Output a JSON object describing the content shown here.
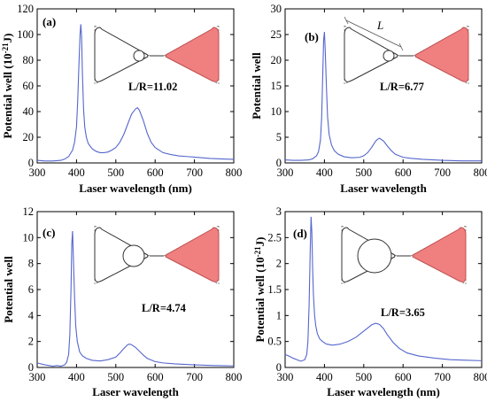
{
  "colors": {
    "curve": "#5566cc",
    "fill": "#f08080",
    "axis": "#000000"
  },
  "chart_data": [
    {
      "type": "line",
      "panel_label": "(a)",
      "ratio_label": "L/R=11.02",
      "xlabel": "Laser wavelength (nm)",
      "ylabel_pre": "Potential well (10",
      "ylabel_sup": "-21",
      "ylabel_post": "J)",
      "xlim": [
        300,
        800
      ],
      "ylim": [
        0,
        120
      ],
      "xticks": [
        300,
        400,
        500,
        600,
        700,
        800
      ],
      "yticks": [
        0,
        20,
        40,
        60,
        80,
        100,
        120
      ],
      "yticklabels": [
        "0",
        "20",
        "40",
        "60",
        "80",
        "100",
        "120"
      ],
      "x": [
        300,
        320,
        340,
        360,
        370,
        380,
        390,
        395,
        400,
        403,
        406,
        409,
        411,
        413,
        415,
        418,
        421,
        425,
        430,
        440,
        450,
        460,
        470,
        480,
        490,
        500,
        510,
        520,
        530,
        540,
        550,
        555,
        560,
        570,
        580,
        590,
        600,
        620,
        640,
        660,
        680,
        700,
        720,
        740,
        760,
        780,
        800
      ],
      "y": [
        2,
        1.5,
        1.5,
        2,
        3,
        5,
        10,
        16,
        28,
        48,
        75,
        100,
        108,
        98,
        70,
        42,
        28,
        20,
        15,
        11,
        9,
        8,
        8,
        8.5,
        10,
        12,
        16,
        22,
        30,
        38,
        42,
        43,
        41,
        33,
        23,
        16,
        12,
        8,
        6.5,
        5.5,
        5,
        4.5,
        4,
        3.5,
        3.2,
        3,
        2.8
      ],
      "show_L": false,
      "inner_circle": "small"
    },
    {
      "type": "line",
      "panel_label": "(b)",
      "ratio_label": "L/R=6.77",
      "L_label": "L",
      "xlabel": "Laser wavelength",
      "ylabel_pre": "Potential well",
      "ylabel_sup": "",
      "ylabel_post": "",
      "xlim": [
        300,
        800
      ],
      "ylim": [
        0,
        30
      ],
      "xticks": [
        300,
        400,
        500,
        600,
        700,
        800
      ],
      "yticks": [
        0,
        5,
        10,
        15,
        20,
        25,
        30
      ],
      "yticklabels": [
        "0",
        "5",
        "10",
        "15",
        "20",
        "25",
        "30"
      ],
      "x": [
        300,
        320,
        340,
        360,
        370,
        380,
        385,
        390,
        393,
        396,
        398,
        400,
        402,
        405,
        408,
        412,
        418,
        425,
        435,
        450,
        470,
        490,
        500,
        510,
        520,
        530,
        535,
        540,
        550,
        560,
        570,
        580,
        600,
        620,
        650,
        700,
        750,
        800
      ],
      "y": [
        0.6,
        0.5,
        0.5,
        0.6,
        0.8,
        1.4,
        2.2,
        4.5,
        9,
        18,
        24,
        25.5,
        22,
        15,
        9,
        5.5,
        3.5,
        2.4,
        1.7,
        1.2,
        1.0,
        1.1,
        1.4,
        2.0,
        3.0,
        4.2,
        4.6,
        4.8,
        4.3,
        3.3,
        2.4,
        1.7,
        1.1,
        0.9,
        0.7,
        0.5,
        0.4,
        0.4
      ],
      "show_L": true,
      "inner_circle": "small"
    },
    {
      "type": "line",
      "panel_label": "(c)",
      "ratio_label": "L/R=4.74",
      "xlabel": "Laser wavelength",
      "ylabel_pre": "Potential well",
      "ylabel_sup": "",
      "ylabel_post": "",
      "xlim": [
        300,
        800
      ],
      "ylim": [
        0,
        12
      ],
      "xticks": [
        300,
        400,
        500,
        600,
        700,
        800
      ],
      "yticks": [
        0,
        2,
        4,
        6,
        8,
        10,
        12
      ],
      "yticklabels": [
        "0",
        "2",
        "4",
        "6",
        "8",
        "10",
        "12"
      ],
      "x": [
        300,
        320,
        340,
        350,
        360,
        370,
        375,
        380,
        383,
        386,
        388,
        390,
        392,
        395,
        398,
        402,
        408,
        415,
        425,
        440,
        460,
        480,
        500,
        510,
        520,
        530,
        535,
        540,
        550,
        560,
        570,
        580,
        600,
        620,
        650,
        700,
        750,
        800
      ],
      "y": [
        0.35,
        0.2,
        0.1,
        0.15,
        0.1,
        0.2,
        0.4,
        1.0,
        2.5,
        6,
        9.5,
        10.5,
        8.5,
        5.5,
        3.2,
        2.0,
        1.2,
        0.9,
        0.7,
        0.55,
        0.5,
        0.6,
        0.8,
        1.1,
        1.45,
        1.75,
        1.8,
        1.75,
        1.55,
        1.25,
        0.95,
        0.7,
        0.45,
        0.35,
        0.28,
        0.2,
        0.15,
        0.12
      ],
      "show_L": false,
      "inner_circle": "medium"
    },
    {
      "type": "line",
      "panel_label": "(d)",
      "ratio_label": "L/R=3.65",
      "xlabel": "Laser wavelength (nm)",
      "ylabel_pre": "Potential well (10",
      "ylabel_sup": "-21",
      "ylabel_post": "J)",
      "xlim": [
        300,
        800
      ],
      "ylim": [
        0,
        3
      ],
      "xticks": [
        300,
        400,
        500,
        600,
        700,
        800
      ],
      "yticks": [
        0,
        0.5,
        1,
        1.5,
        2,
        2.5,
        3
      ],
      "yticklabels": [
        "0",
        "0.5",
        "1",
        "1.5",
        "2",
        "2.5",
        "3"
      ],
      "x": [
        300,
        310,
        320,
        330,
        340,
        350,
        355,
        358,
        361,
        364,
        366,
        368,
        370,
        372,
        375,
        378,
        382,
        388,
        395,
        405,
        420,
        440,
        460,
        480,
        500,
        510,
        520,
        530,
        540,
        550,
        560,
        575,
        590,
        610,
        640,
        680,
        720,
        760,
        800
      ],
      "y": [
        0.25,
        0.22,
        0.18,
        0.15,
        0.12,
        0.15,
        0.25,
        0.5,
        1.2,
        2.3,
        2.9,
        2.6,
        1.9,
        1.4,
        1.0,
        0.8,
        0.65,
        0.55,
        0.5,
        0.45,
        0.43,
        0.45,
        0.5,
        0.58,
        0.7,
        0.76,
        0.82,
        0.85,
        0.83,
        0.75,
        0.63,
        0.48,
        0.37,
        0.28,
        0.22,
        0.18,
        0.15,
        0.14,
        0.13
      ],
      "show_L": false,
      "inner_circle": "large"
    }
  ]
}
